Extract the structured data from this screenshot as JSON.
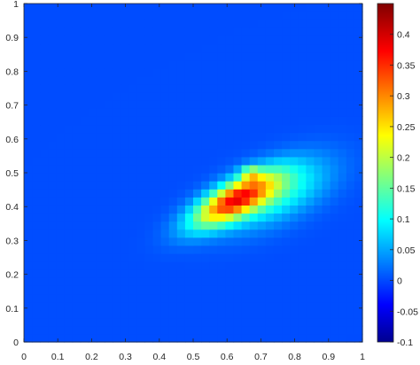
{
  "chart_data": {
    "type": "heatmap",
    "title": "",
    "xlabel": "",
    "ylabel": "",
    "xlim": [
      0,
      1
    ],
    "ylim": [
      0,
      1
    ],
    "x_ticks": [
      "0",
      "0.1",
      "0.2",
      "0.3",
      "0.4",
      "0.5",
      "0.6",
      "0.7",
      "0.8",
      "0.9",
      "1"
    ],
    "y_ticks": [
      "0",
      "0.1",
      "0.2",
      "0.3",
      "0.4",
      "0.5",
      "0.6",
      "0.7",
      "0.8",
      "0.9",
      "1"
    ],
    "grid": false,
    "colormap": "jet",
    "clim": [
      -0.1,
      0.45
    ],
    "colorbar_ticks": [
      "-0.1",
      "-0.05",
      "0",
      "0.05",
      "0.1",
      "0.15",
      "0.2",
      "0.25",
      "0.3",
      "0.35",
      "0.4"
    ],
    "background_value": 0.01,
    "hotspots": [
      {
        "x": 0.62,
        "y": 0.42,
        "sx": 0.085,
        "sy": 0.055,
        "rho": 0.72,
        "amp": 0.32
      },
      {
        "x": 0.74,
        "y": 0.44,
        "sx": 0.11,
        "sy": 0.07,
        "rho": 0.55,
        "amp": 0.12
      },
      {
        "x": 0.67,
        "y": 0.5,
        "sx": 0.02,
        "sy": 0.015,
        "rho": 0.0,
        "amp": 0.12
      }
    ]
  }
}
